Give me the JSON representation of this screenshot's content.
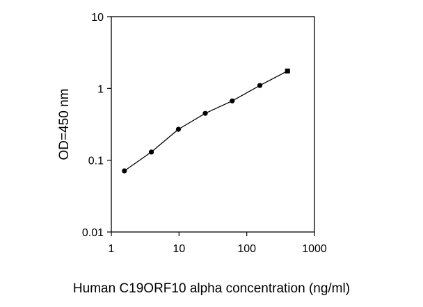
{
  "chart_data": {
    "type": "line",
    "title": "",
    "xlabel": "Human C19ORF10 alpha concentration (ng/ml)",
    "ylabel": "OD=450 nm",
    "x_scale": "log",
    "y_scale": "log",
    "xlim": [
      1,
      1000
    ],
    "ylim": [
      0.01,
      10
    ],
    "x_ticks": [
      "1",
      "10",
      "100",
      "1000"
    ],
    "y_ticks": [
      "0.01",
      "0.1",
      "1",
      "10"
    ],
    "grid": false,
    "legend": "none",
    "series": [
      {
        "x": [
          1.56,
          3.9,
          9.8,
          24.4,
          61,
          156,
          400
        ],
        "y": [
          0.071,
          0.13,
          0.27,
          0.45,
          0.67,
          1.1,
          1.75
        ]
      }
    ],
    "colors": {
      "line": "#000000",
      "marker": "#000000",
      "axis": "#000000"
    }
  }
}
